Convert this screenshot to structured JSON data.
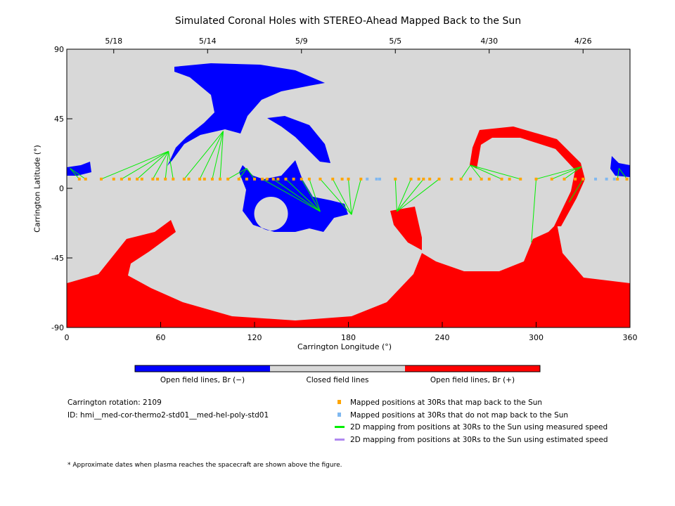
{
  "chart_data": {
    "type": "map",
    "title": "Simulated Coronal Holes with STEREO-Ahead Mapped Back to the Sun",
    "xlabel": "Carrington Longitude (°)",
    "ylabel": "Carrington Latitude (°)",
    "xlim": [
      0,
      360
    ],
    "ylim": [
      -90,
      90
    ],
    "xticks": [
      "0",
      "60",
      "120",
      "180",
      "240",
      "300",
      "360"
    ],
    "xtick_values": [
      0,
      60,
      120,
      180,
      240,
      300,
      360
    ],
    "yticks": [
      "90",
      "45",
      "0",
      "-45",
      "-90"
    ],
    "ytick_values": [
      90,
      45,
      0,
      -45,
      -90
    ],
    "top_dates": [
      {
        "lon": 30,
        "label": "5/18"
      },
      {
        "lon": 90,
        "label": "5/14"
      },
      {
        "lon": 150,
        "label": "5/9"
      },
      {
        "lon": 210,
        "label": "5/5"
      },
      {
        "lon": 270,
        "label": "4/30"
      },
      {
        "lon": 330,
        "label": "4/26"
      }
    ],
    "mapped_back_lons": [
      8,
      12,
      22,
      30,
      35,
      40,
      45,
      48,
      55,
      58,
      63,
      68,
      75,
      78,
      85,
      88,
      93,
      98,
      103,
      110,
      115,
      120,
      125,
      128,
      132,
      135,
      140,
      145,
      150,
      155,
      162,
      170,
      176,
      180,
      188,
      210,
      220,
      225,
      228,
      232,
      238,
      246,
      252,
      258,
      265,
      270,
      278,
      283,
      290,
      300,
      310,
      318,
      325,
      330,
      352,
      358
    ],
    "not_mapped_lons": [
      192,
      198,
      200,
      338,
      345,
      350
    ],
    "mapped_lat": 6,
    "mapping_lines": [
      [
        8,
        6,
        2,
        13
      ],
      [
        12,
        6,
        2,
        13
      ],
      [
        22,
        6,
        65,
        24
      ],
      [
        35,
        6,
        65,
        24
      ],
      [
        45,
        6,
        65,
        24
      ],
      [
        55,
        6,
        65,
        24
      ],
      [
        63,
        6,
        65,
        24
      ],
      [
        68,
        6,
        65,
        24
      ],
      [
        75,
        6,
        100,
        37
      ],
      [
        85,
        6,
        100,
        37
      ],
      [
        93,
        6,
        100,
        37
      ],
      [
        98,
        6,
        100,
        37
      ],
      [
        103,
        6,
        115,
        13
      ],
      [
        110,
        6,
        115,
        13
      ],
      [
        120,
        6,
        115,
        13
      ],
      [
        125,
        6,
        162,
        -15
      ],
      [
        132,
        6,
        162,
        -15
      ],
      [
        140,
        6,
        162,
        -15
      ],
      [
        150,
        6,
        162,
        -15
      ],
      [
        155,
        6,
        162,
        -15
      ],
      [
        162,
        6,
        182,
        -17
      ],
      [
        170,
        6,
        182,
        -17
      ],
      [
        180,
        6,
        182,
        -17
      ],
      [
        188,
        6,
        182,
        -17
      ],
      [
        210,
        6,
        211,
        -15
      ],
      [
        220,
        6,
        211,
        -15
      ],
      [
        228,
        6,
        211,
        -15
      ],
      [
        238,
        6,
        211,
        -15
      ],
      [
        252,
        6,
        258,
        15
      ],
      [
        265,
        6,
        258,
        15
      ],
      [
        278,
        6,
        258,
        15
      ],
      [
        290,
        6,
        258,
        15
      ],
      [
        300,
        6,
        297,
        -35
      ],
      [
        300,
        6,
        329,
        14
      ],
      [
        310,
        6,
        329,
        14
      ],
      [
        318,
        6,
        329,
        14
      ],
      [
        330,
        6,
        321,
        -9
      ],
      [
        352,
        6,
        353,
        13
      ],
      [
        358,
        6,
        353,
        13
      ]
    ],
    "colorbar": {
      "labels": [
        "Open field lines, Br (−)",
        "Closed field lines",
        "Open field lines, Br (+)"
      ],
      "colors": [
        "#0000ff",
        "#d8d8d8",
        "#ff0000"
      ]
    },
    "legend": [
      {
        "label": "Mapped positions at 30Rs that map back to the Sun",
        "color": "#ffa500",
        "kind": "square"
      },
      {
        "label": "Mapped positions at 30Rs that do not map back to the Sun",
        "color": "#80b8f0",
        "kind": "square"
      },
      {
        "label": "2D mapping from positions at 30Rs to the Sun using measured speed",
        "color": "#00ee00",
        "kind": "line"
      },
      {
        "label": "2D mapping from positions at 30Rs to the Sun using estimated speed",
        "color": "#b088f0",
        "kind": "line"
      }
    ],
    "info": {
      "rotation": "Carrington rotation: 2109",
      "id": "ID: hmi__med-cor-thermo2-std01__med-hel-poly-std01"
    },
    "footnote": "* Approximate dates when plasma reaches the spacecraft are shown above the figure."
  }
}
